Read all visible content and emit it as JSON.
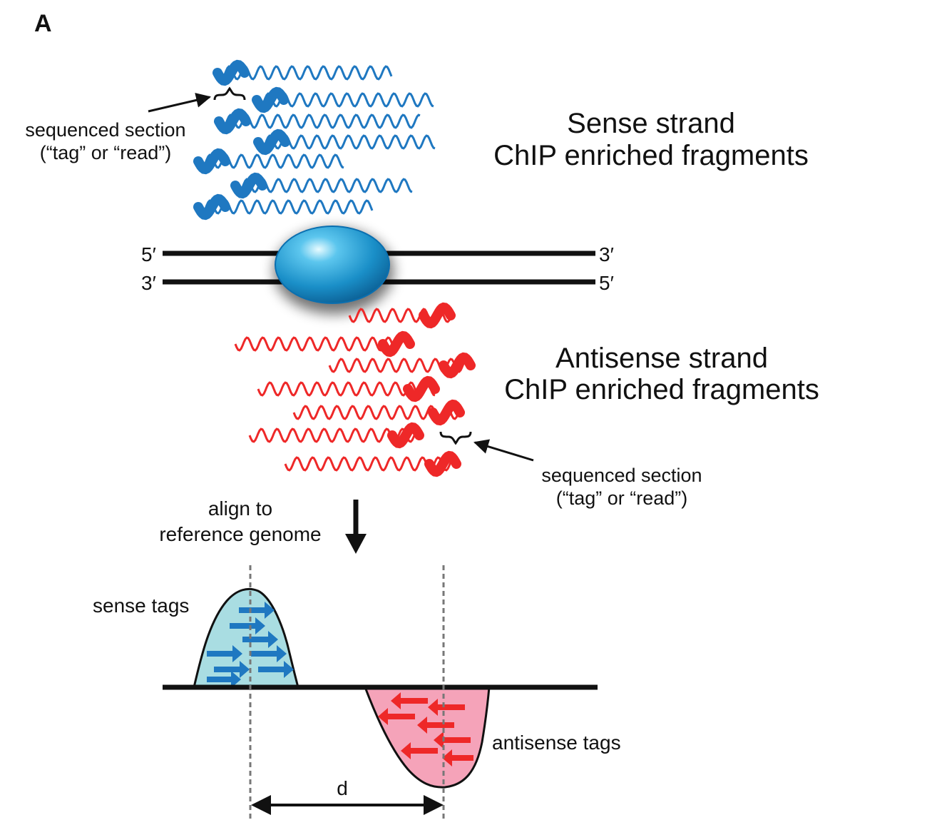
{
  "panel_label": "A",
  "sense": {
    "title_line1": "Sense strand",
    "title_line2": "ChIP enriched fragments",
    "callout_line1": "sequenced section",
    "callout_line2": "(“tag” or  “read”)",
    "color": "#1f78c1"
  },
  "antisense": {
    "title_line1": "Antisense strand",
    "title_line2": "ChIP enriched fragments",
    "callout_line1": "sequenced section",
    "callout_line2": "(“tag” or  “read”)",
    "color": "#ee2828"
  },
  "dna": {
    "top_left": "5′",
    "top_right": "3′",
    "bottom_left": "3′",
    "bottom_right": "5′",
    "protein_color": "#1a8fc8"
  },
  "align": {
    "line1": "align to",
    "line2": "reference genome"
  },
  "profile": {
    "sense_label": "sense tags",
    "antisense_label": "antisense tags",
    "distance_label": "d",
    "sense_fill": "#a9dde2",
    "antisense_fill": "#f5a3b9"
  }
}
